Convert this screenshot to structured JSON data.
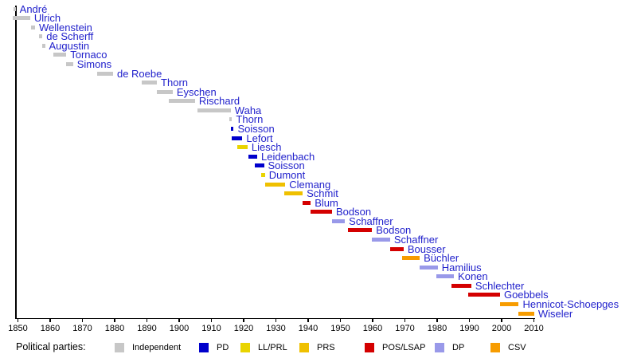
{
  "chart_data": {
    "type": "timeline",
    "description": "Gantt-style timeline of office holders colored by political party",
    "legend_title": "Political parties:",
    "x_axis": {
      "range": [
        1848,
        2011
      ],
      "tick_years": [
        1850,
        1860,
        1870,
        1880,
        1890,
        1900,
        1910,
        1920,
        1930,
        1940,
        1950,
        1960,
        1970,
        1980,
        1990,
        2000,
        2010
      ]
    },
    "parties": [
      {
        "code": "Independent",
        "label": "Independent",
        "color": "#C7C7C7"
      },
      {
        "code": "PD",
        "label": "PD",
        "color": "#0000CC"
      },
      {
        "code": "LL/PRL",
        "label": "LL/PRL",
        "color": "#E9D400"
      },
      {
        "code": "PRS",
        "label": "PRS",
        "color": "#EFC000"
      },
      {
        "code": "POS/LSAP",
        "label": "POS/LSAP",
        "color": "#D40000"
      },
      {
        "code": "DP",
        "label": "DP",
        "color": "#9999E9"
      },
      {
        "code": "CSV",
        "label": "CSV",
        "color": "#F79C00"
      }
    ],
    "bars": [
      {
        "name": "André",
        "party": "Independent",
        "start": 1848.6,
        "end": 1849.3
      },
      {
        "name": "Ulrich",
        "party": "Independent",
        "start": 1848.4,
        "end": 1853.8
      },
      {
        "name": "Wellenstein",
        "party": "Independent",
        "start": 1854.1,
        "end": 1855.3
      },
      {
        "name": "de Scherff",
        "party": "Independent",
        "start": 1856.5,
        "end": 1857.6
      },
      {
        "name": "Augustin",
        "party": "Independent",
        "start": 1857.6,
        "end": 1858.4
      },
      {
        "name": "Tornaco",
        "party": "Independent",
        "start": 1861.0,
        "end": 1865.0
      },
      {
        "name": "Simons",
        "party": "Independent",
        "start": 1865.0,
        "end": 1867.1
      },
      {
        "name": "de Roebe",
        "party": "Independent",
        "start": 1874.6,
        "end": 1879.5
      },
      {
        "name": "Thorn",
        "party": "Independent",
        "start": 1888.3,
        "end": 1893.1
      },
      {
        "name": "Eyschen",
        "party": "Independent",
        "start": 1893.1,
        "end": 1898.0
      },
      {
        "name": "Rischard",
        "party": "Independent",
        "start": 1896.8,
        "end": 1904.9
      },
      {
        "name": "Waha",
        "party": "Independent",
        "start": 1905.7,
        "end": 1916.0
      },
      {
        "name": "Thorn",
        "party": "Independent",
        "start": 1915.5,
        "end": 1916.4
      },
      {
        "name": "Soisson",
        "party": "PD",
        "start": 1916.1,
        "end": 1916.9
      },
      {
        "name": "Lefort",
        "party": "PD",
        "start": 1916.4,
        "end": 1919.6
      },
      {
        "name": "Liesch",
        "party": "LL/PRL",
        "start": 1918.0,
        "end": 1921.2
      },
      {
        "name": "Leidenbach",
        "party": "PD",
        "start": 1921.4,
        "end": 1924.2
      },
      {
        "name": "Soisson",
        "party": "PD",
        "start": 1923.4,
        "end": 1926.3
      },
      {
        "name": "Dumont",
        "party": "LL/PRL",
        "start": 1925.5,
        "end": 1926.6
      },
      {
        "name": "Clemang",
        "party": "PRS",
        "start": 1926.6,
        "end": 1932.9
      },
      {
        "name": "Schmit",
        "party": "PRS",
        "start": 1932.6,
        "end": 1938.3
      },
      {
        "name": "Blum",
        "party": "POS/LSAP",
        "start": 1938.3,
        "end": 1940.8
      },
      {
        "name": "Bodson",
        "party": "POS/LSAP",
        "start": 1940.8,
        "end": 1947.4
      },
      {
        "name": "Schaffner",
        "party": "DP",
        "start": 1947.4,
        "end": 1951.4
      },
      {
        "name": "Bodson",
        "party": "POS/LSAP",
        "start": 1952.4,
        "end": 1959.8
      },
      {
        "name": "Schaffner",
        "party": "DP",
        "start": 1959.8,
        "end": 1965.4
      },
      {
        "name": "Bousser",
        "party": "POS/LSAP",
        "start": 1965.4,
        "end": 1969.6
      },
      {
        "name": "Büchler",
        "party": "CSV",
        "start": 1969.1,
        "end": 1974.6
      },
      {
        "name": "Hamilius",
        "party": "DP",
        "start": 1974.6,
        "end": 1980.2
      },
      {
        "name": "Konen",
        "party": "DP",
        "start": 1979.8,
        "end": 1985.2
      },
      {
        "name": "Schlechter",
        "party": "POS/LSAP",
        "start": 1984.5,
        "end": 1990.6
      },
      {
        "name": "Goebbels",
        "party": "POS/LSAP",
        "start": 1989.6,
        "end": 1999.5
      },
      {
        "name": "Hennicot-Schoepges",
        "party": "CSV",
        "start": 1999.5,
        "end": 2005.3
      },
      {
        "name": "Wiseler",
        "party": "CSV",
        "start": 2005.3,
        "end": 2010.1
      }
    ]
  }
}
